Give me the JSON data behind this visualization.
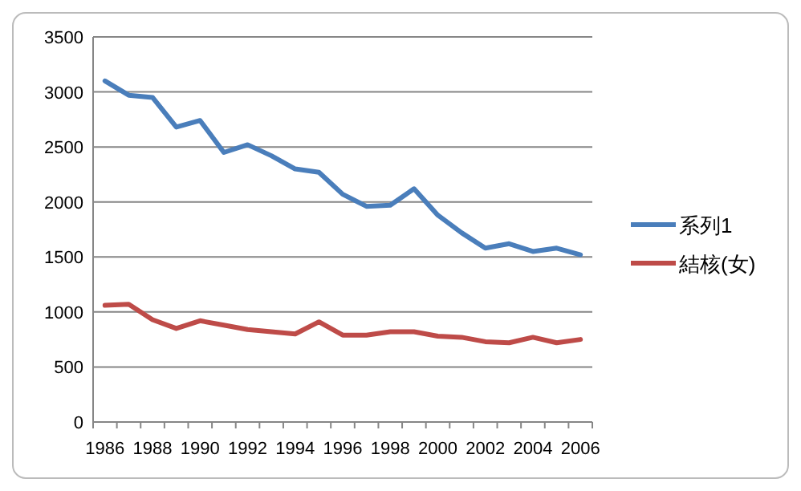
{
  "chart_data": {
    "type": "line",
    "categories": [
      "1986",
      null,
      "1988",
      null,
      "1990",
      null,
      "1992",
      null,
      "1994",
      null,
      "1996",
      null,
      "1998",
      null,
      "2000",
      null,
      "2002",
      null,
      "2004",
      null,
      "2006"
    ],
    "series": [
      {
        "name": "系列1",
        "color": "#4a7ebb",
        "values": [
          3100,
          2970,
          2950,
          2680,
          2740,
          2450,
          2520,
          2420,
          2300,
          2270,
          2070,
          1960,
          1970,
          2120,
          1880,
          1720,
          1580,
          1620,
          1550,
          1580,
          1520
        ]
      },
      {
        "name": "結核(女)",
        "color": "#be4b48",
        "values": [
          1060,
          1070,
          930,
          850,
          920,
          880,
          840,
          820,
          800,
          910,
          790,
          790,
          820,
          820,
          780,
          770,
          730,
          720,
          770,
          720,
          750
        ]
      }
    ],
    "ylim": [
      0,
      3500
    ],
    "yticks": [
      0,
      500,
      1000,
      1500,
      2000,
      2500,
      3000,
      3500
    ],
    "grid": "y",
    "legend": "right",
    "marker": "none",
    "line_style": "solid"
  }
}
